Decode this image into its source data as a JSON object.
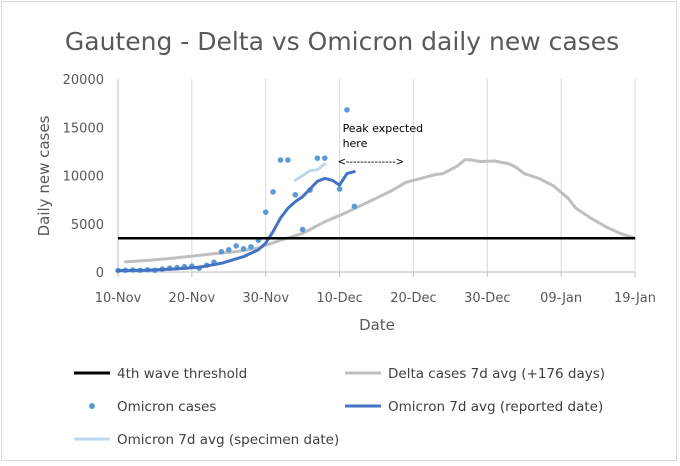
{
  "chart_data": {
    "type": "line",
    "title": "Gauteng -  Delta vs Omicron daily new cases",
    "xlabel": "Date",
    "ylabel": "Daily new cases",
    "ylim": [
      0,
      20000
    ],
    "yticks": [
      "0",
      "5000",
      "10000",
      "15000",
      "20000"
    ],
    "xlim": [
      "2021-11-10",
      "2022-01-19"
    ],
    "xticks": [
      {
        "date": "2021-11-10",
        "label": "10-Nov"
      },
      {
        "date": "2021-11-20",
        "label": "20-Nov"
      },
      {
        "date": "2021-11-30",
        "label": "30-Nov"
      },
      {
        "date": "2021-12-10",
        "label": "10-Dec"
      },
      {
        "date": "2021-12-20",
        "label": "20-Dec"
      },
      {
        "date": "2021-12-30",
        "label": "30-Dec"
      },
      {
        "date": "2022-01-09",
        "label": "09-Jan"
      },
      {
        "date": "2022-01-19",
        "label": "19-Jan"
      }
    ],
    "grid": "vertical",
    "legend_position": "bottom",
    "threshold": {
      "name": "4th wave threshold",
      "value": 3500,
      "color": "#000000"
    },
    "series": [
      {
        "name": "Delta cases 7d avg (+176 days)",
        "kind": "line",
        "color": "#bfbfbf",
        "points": [
          [
            "2021-11-11",
            1050
          ],
          [
            "2021-11-14",
            1200
          ],
          [
            "2021-11-17",
            1400
          ],
          [
            "2021-11-20",
            1650
          ],
          [
            "2021-11-23",
            1900
          ],
          [
            "2021-11-26",
            2100
          ],
          [
            "2021-11-29",
            2500
          ],
          [
            "2021-12-02",
            3300
          ],
          [
            "2021-12-05",
            4000
          ],
          [
            "2021-12-08",
            5200
          ],
          [
            "2021-12-11",
            6200
          ],
          [
            "2021-12-14",
            7300
          ],
          [
            "2021-12-17",
            8400
          ],
          [
            "2021-12-19",
            9300
          ],
          [
            "2021-12-21",
            9700
          ],
          [
            "2021-12-23",
            10100
          ],
          [
            "2021-12-24",
            10200
          ],
          [
            "2021-12-26",
            11000
          ],
          [
            "2021-12-27",
            11650
          ],
          [
            "2021-12-28",
            11600
          ],
          [
            "2021-12-29",
            11450
          ],
          [
            "2021-12-31",
            11500
          ],
          [
            "2022-01-02",
            11200
          ],
          [
            "2022-01-03",
            10800
          ],
          [
            "2022-01-04",
            10200
          ],
          [
            "2022-01-06",
            9700
          ],
          [
            "2022-01-08",
            8900
          ],
          [
            "2022-01-10",
            7600
          ],
          [
            "2022-01-11",
            6600
          ],
          [
            "2022-01-13",
            5600
          ],
          [
            "2022-01-15",
            4700
          ],
          [
            "2022-01-17",
            4000
          ],
          [
            "2022-01-19",
            3500
          ]
        ]
      },
      {
        "name": "Omicron cases",
        "kind": "scatter",
        "color": "#5b9bd5",
        "points": [
          [
            "2021-11-10",
            150
          ],
          [
            "2021-11-11",
            180
          ],
          [
            "2021-11-12",
            200
          ],
          [
            "2021-11-13",
            180
          ],
          [
            "2021-11-14",
            230
          ],
          [
            "2021-11-15",
            180
          ],
          [
            "2021-11-16",
            300
          ],
          [
            "2021-11-17",
            400
          ],
          [
            "2021-11-18",
            450
          ],
          [
            "2021-11-19",
            550
          ],
          [
            "2021-11-20",
            600
          ],
          [
            "2021-11-21",
            400
          ],
          [
            "2021-11-22",
            700
          ],
          [
            "2021-11-23",
            1000
          ],
          [
            "2021-11-24",
            2100
          ],
          [
            "2021-11-25",
            2300
          ],
          [
            "2021-11-26",
            2700
          ],
          [
            "2021-11-27",
            2400
          ],
          [
            "2021-11-28",
            2600
          ],
          [
            "2021-11-29",
            3300
          ],
          [
            "2021-11-30",
            6200
          ],
          [
            "2021-12-01",
            8300
          ],
          [
            "2021-12-02",
            11600
          ],
          [
            "2021-12-03",
            11600
          ],
          [
            "2021-12-04",
            8000
          ],
          [
            "2021-12-05",
            4400
          ],
          [
            "2021-12-06",
            8500
          ],
          [
            "2021-12-07",
            11800
          ],
          [
            "2021-12-08",
            11800
          ],
          [
            "2021-12-10",
            8600
          ],
          [
            "2021-12-11",
            16800
          ],
          [
            "2021-12-12",
            6800
          ]
        ]
      },
      {
        "name": "Omicron 7d avg (reported date)",
        "kind": "line",
        "color": "#4472c4",
        "points": [
          [
            "2021-11-10",
            150
          ],
          [
            "2021-11-14",
            190
          ],
          [
            "2021-11-18",
            320
          ],
          [
            "2021-11-21",
            500
          ],
          [
            "2021-11-24",
            900
          ],
          [
            "2021-11-27",
            1600
          ],
          [
            "2021-11-29",
            2300
          ],
          [
            "2021-11-30",
            3000
          ],
          [
            "2021-12-01",
            4200
          ],
          [
            "2021-12-02",
            5600
          ],
          [
            "2021-12-03",
            6600
          ],
          [
            "2021-12-04",
            7300
          ],
          [
            "2021-12-05",
            7800
          ],
          [
            "2021-12-06",
            8600
          ],
          [
            "2021-12-07",
            9400
          ],
          [
            "2021-12-08",
            9700
          ],
          [
            "2021-12-09",
            9500
          ],
          [
            "2021-12-10",
            9000
          ],
          [
            "2021-12-11",
            10200
          ],
          [
            "2021-12-12",
            10400
          ]
        ]
      },
      {
        "name": "Omicron 7d avg (specimen date)",
        "kind": "line",
        "color": "#bdd7ee",
        "points": [
          [
            "2021-12-04",
            9500
          ],
          [
            "2021-12-05",
            10000
          ],
          [
            "2021-12-06",
            10500
          ],
          [
            "2021-12-07",
            10600
          ],
          [
            "2021-12-08",
            11200
          ]
        ]
      }
    ],
    "annotation": {
      "lines": [
        "Peak expected",
        "here"
      ],
      "arrow_text": "<-------------->",
      "arrow_from": "2021-12-10",
      "arrow_to": "2021-12-19",
      "anchor_date": "2021-12-10",
      "anchor_value": 14500
    }
  }
}
